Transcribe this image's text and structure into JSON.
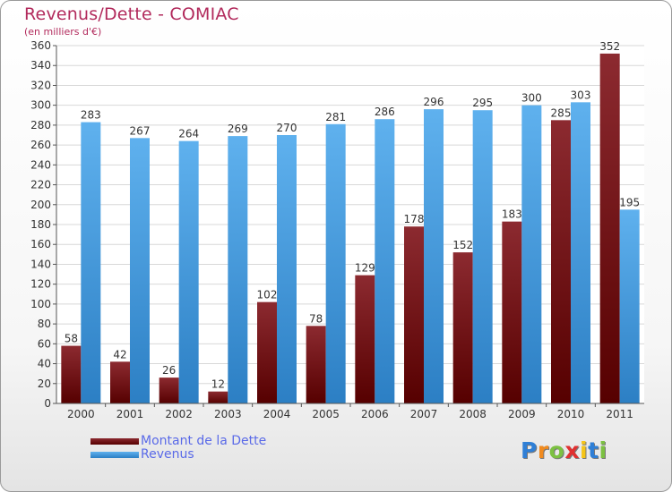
{
  "title": "Revenus/Dette - COMIAC",
  "subtitle": "(en milliers d'€)",
  "brand": {
    "text": "Proxiti",
    "letter_colors": [
      "#2f7fd6",
      "#f08a1e",
      "#7cc142",
      "#e03131",
      "#f5c518",
      "#2f7fd6",
      "#7cc142"
    ]
  },
  "chart_data": {
    "type": "bar",
    "categories": [
      "2000",
      "2001",
      "2002",
      "2003",
      "2004",
      "2005",
      "2006",
      "2007",
      "2008",
      "2009",
      "2010",
      "2011"
    ],
    "series": [
      {
        "name": "Montant de la Dette",
        "values": [
          58,
          42,
          26,
          12,
          102,
          78,
          129,
          178,
          152,
          183,
          285,
          352
        ],
        "color": "#7a1f24"
      },
      {
        "name": "Revenus",
        "values": [
          283,
          267,
          264,
          269,
          270,
          281,
          286,
          296,
          295,
          300,
          303,
          195
        ],
        "color": "#4ea3e6"
      }
    ],
    "ylim": [
      0,
      360
    ],
    "yticks": [
      0,
      20,
      40,
      60,
      80,
      100,
      120,
      140,
      160,
      180,
      200,
      220,
      240,
      260,
      280,
      300,
      320,
      340,
      360
    ],
    "grid": true,
    "legend_position": "bottom-left",
    "data_labels": true
  }
}
